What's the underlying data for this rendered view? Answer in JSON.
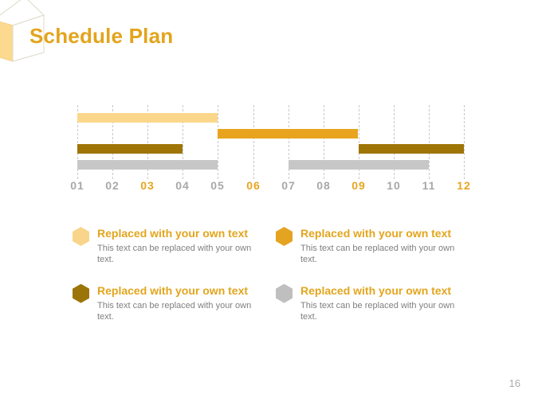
{
  "slide": {
    "title": "Schedule Plan",
    "page_number": "16"
  },
  "colors": {
    "title": "#E3A41C",
    "grid_line": "#C9C9C9",
    "tick_default": "#A8A8A8",
    "tick_highlight": "#E8A41F",
    "legend_heading": "#E3A51D",
    "legend_body": "#7F7F7F",
    "page_number": "#ABABAB",
    "cube_face_fill": "#FBD98E",
    "cube_edge": "#DDD8C9"
  },
  "chart_data": {
    "type": "gantt",
    "title": "Schedule Plan",
    "x_ticks": [
      "01",
      "02",
      "03",
      "04",
      "05",
      "06",
      "07",
      "08",
      "09",
      "10",
      "11",
      "12"
    ],
    "highlighted_ticks": [
      "03",
      "06",
      "09",
      "12"
    ],
    "axis_range": [
      1,
      12
    ],
    "grid": "dashed-vertical",
    "rows": [
      {
        "name": "phase-1",
        "color": "#FBD78C",
        "segments": [
          {
            "start": 1,
            "end": 5
          }
        ]
      },
      {
        "name": "phase-2",
        "color": "#E8A41F",
        "segments": [
          {
            "start": 5,
            "end": 9
          }
        ]
      },
      {
        "name": "phase-3",
        "color": "#9E7506",
        "segments": [
          {
            "start": 1,
            "end": 4
          },
          {
            "start": 9,
            "end": 12
          }
        ]
      },
      {
        "name": "phase-4",
        "color": "#C7C7C7",
        "segments": [
          {
            "start": 1,
            "end": 5
          },
          {
            "start": 7,
            "end": 11
          }
        ]
      }
    ]
  },
  "legend": {
    "items": [
      {
        "icon": "hexagon-icon",
        "icon_color": "#F8D58A",
        "heading": "Replaced with your own text",
        "body": "This text can be replaced with your own text."
      },
      {
        "icon": "hexagon-icon",
        "icon_color": "#E5A322",
        "heading": "Replaced with your own text",
        "body": "This text can be replaced with your own text."
      },
      {
        "icon": "hexagon-icon",
        "icon_color": "#9C750A",
        "heading": "Replaced with your own text",
        "body": "This text can be replaced with your own text."
      },
      {
        "icon": "hexagon-icon",
        "icon_color": "#BFBFBF",
        "heading": "Replaced with your own text",
        "body": "This text can be replaced with your own text."
      }
    ]
  }
}
